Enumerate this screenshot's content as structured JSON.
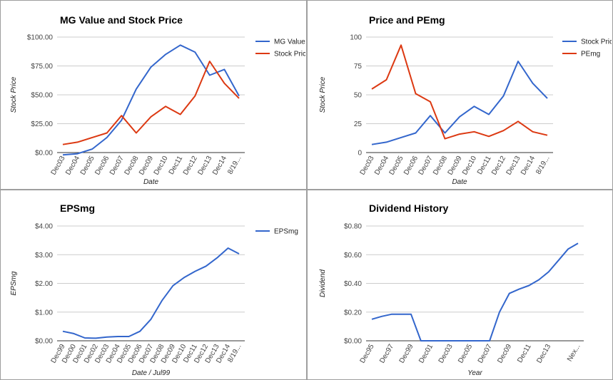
{
  "chart_data": [
    {
      "type": "line",
      "title": "MG Value and Stock Price",
      "xlabel": "Date",
      "ylabel": "Stock Price",
      "categories": [
        "Dec03",
        "Dec04",
        "Dec05",
        "Dec06",
        "Dec07",
        "Dec08",
        "Dec09",
        "Dec10",
        "Dec11",
        "Dec12",
        "Dec13",
        "Dec14",
        "8/19..."
      ],
      "y_ticks": [
        "$0.00",
        "$25.00",
        "$50.00",
        "$75.00",
        "$100.00"
      ],
      "ylim": [
        0,
        100
      ],
      "legend_position": "right",
      "grid": true,
      "series": [
        {
          "name": "MG Value",
          "color": "#3366cc",
          "values": [
            -2,
            -1,
            3,
            13,
            28,
            55,
            74,
            85,
            93,
            87,
            67,
            72,
            49
          ]
        },
        {
          "name": "Stock Price",
          "color": "#dc3912",
          "values": [
            7,
            9,
            13,
            17,
            32,
            17,
            31,
            40,
            33,
            49,
            79,
            60,
            47
          ]
        }
      ]
    },
    {
      "type": "line",
      "title": "Price and PEmg",
      "xlabel": "Date",
      "ylabel": "Stock Price",
      "categories": [
        "Dec03",
        "Dec04",
        "Dec05",
        "Dec06",
        "Dec07",
        "Dec08",
        "Dec09",
        "Dec10",
        "Dec11",
        "Dec12",
        "Dec13",
        "Dec14",
        "8/19..."
      ],
      "y_ticks": [
        "0",
        "25",
        "50",
        "75",
        "100"
      ],
      "ylim": [
        0,
        100
      ],
      "legend_position": "right",
      "grid": true,
      "series": [
        {
          "name": "Stock Price",
          "color": "#3366cc",
          "values": [
            7,
            9,
            13,
            17,
            32,
            17,
            31,
            40,
            33,
            49,
            79,
            60,
            47
          ]
        },
        {
          "name": "PEmg",
          "color": "#dc3912",
          "values": [
            55,
            63,
            93,
            51,
            44,
            12,
            16,
            18,
            14,
            19,
            27,
            18,
            15
          ]
        }
      ]
    },
    {
      "type": "line",
      "title": "EPSmg",
      "xlabel": "Date / Jul99",
      "ylabel": "EPSmg",
      "categories": [
        "Dec99",
        "Dec00",
        "Dec01",
        "Dec02",
        "Dec03",
        "Dec04",
        "Dec05",
        "Dec06",
        "Dec07",
        "Dec08",
        "Dec09",
        "Dec10",
        "Dec11",
        "Dec12",
        "Dec13",
        "Dec14",
        "8/19..."
      ],
      "extra_points": 1,
      "y_ticks": [
        "$0.00",
        "$1.00",
        "$2.00",
        "$3.00",
        "$4.00"
      ],
      "ylim": [
        0,
        4
      ],
      "legend_position": "right",
      "grid": true,
      "series": [
        {
          "name": "EPSmg",
          "color": "#3366cc",
          "values": [
            0.33,
            0.25,
            0.1,
            0.09,
            0.13,
            0.15,
            0.15,
            0.33,
            0.75,
            1.4,
            1.92,
            2.2,
            2.42,
            2.6,
            2.89,
            3.23,
            3.03
          ]
        }
      ]
    },
    {
      "type": "line",
      "title": "Dividend History",
      "xlabel": "Year",
      "ylabel": "Dividend",
      "tick_labels": [
        "Dec95",
        "Dec97",
        "Dec99",
        "Dec01",
        "Dec03",
        "Dec05",
        "Dec07",
        "Dec09",
        "Dec11",
        "Dec13",
        "Nex..."
      ],
      "y_ticks": [
        "$0.00",
        "$0.20",
        "$0.40",
        "$0.60",
        "$0.80"
      ],
      "ylim": [
        0,
        0.8
      ],
      "legend_position": "none",
      "grid": true,
      "series": [
        {
          "name": "",
          "color": "#3366cc",
          "values": [
            0.15,
            0.17,
            0.185,
            0.185,
            0.185,
            0,
            0,
            0,
            0,
            0,
            0,
            0,
            0,
            0.2,
            0.33,
            0.36,
            0.385,
            0.425,
            0.48,
            0.56,
            0.64,
            0.68
          ]
        }
      ]
    }
  ]
}
